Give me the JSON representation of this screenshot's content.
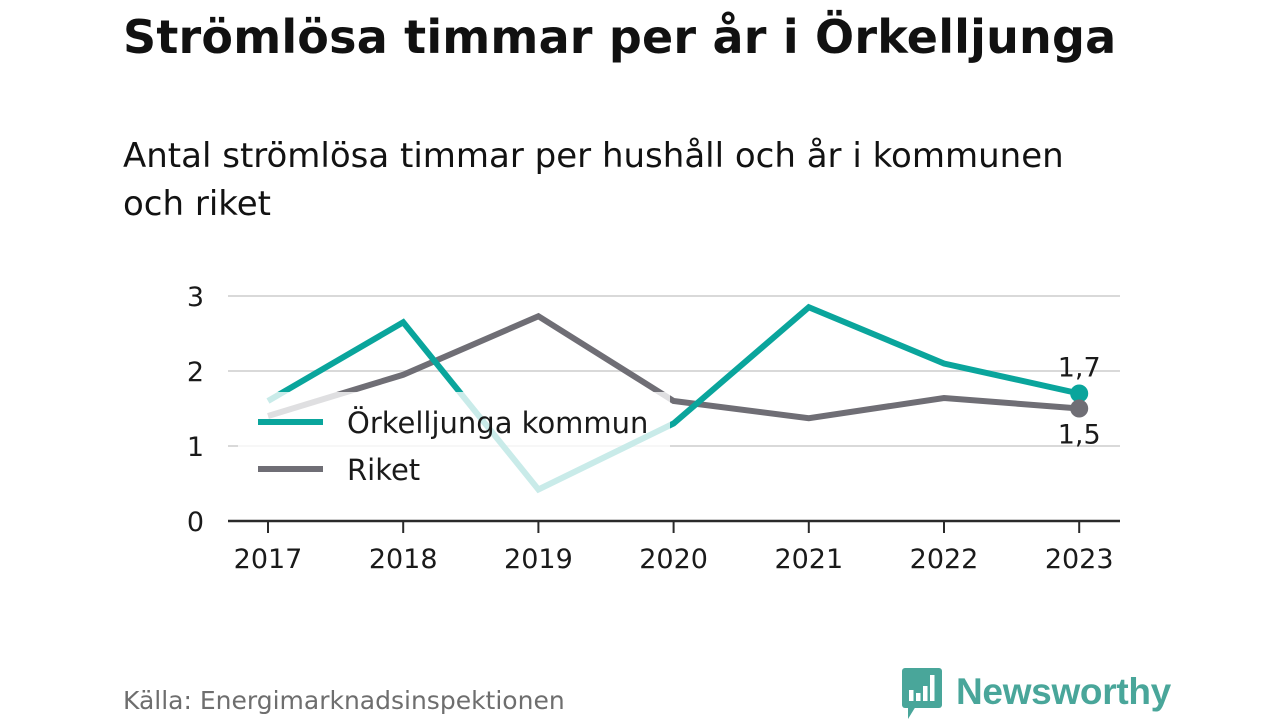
{
  "header": {
    "title": "Strömlösa timmar per år i Örkelljunga",
    "subtitle": "Antal strömlösa timmar per hushåll och år i kommunen och riket"
  },
  "footer": {
    "source": "Källa: Energimarknadsinspektionen",
    "brand": "Newsworthy"
  },
  "colors": {
    "kommun": "#0aa59c",
    "riket": "#6f6e75",
    "grid": "#d9d9d9",
    "axis": "#2a2a2a",
    "brand": "#49a69a"
  },
  "chart_data": {
    "type": "line",
    "title": "Strömlösa timmar per år i Örkelljunga",
    "subtitle": "Antal strömlösa timmar per hushåll och år i kommunen och riket",
    "x": [
      "2017",
      "2018",
      "2019",
      "2020",
      "2021",
      "2022",
      "2023"
    ],
    "xlabel": "",
    "ylabel": "",
    "ylim": [
      0,
      3
    ],
    "yticks": [
      "0",
      "1",
      "2",
      "3"
    ],
    "grid": true,
    "legend_position": "left",
    "series": [
      {
        "name": "Örkelljunga kommun",
        "color": "#0aa59c",
        "values": [
          1.6,
          2.65,
          0.42,
          1.3,
          2.85,
          2.1,
          1.7
        ],
        "end_label": "1,7"
      },
      {
        "name": "Riket",
        "color": "#6f6e75",
        "values": [
          1.4,
          1.95,
          2.73,
          1.6,
          1.37,
          1.64,
          1.5
        ],
        "end_label": "1,5"
      }
    ]
  }
}
